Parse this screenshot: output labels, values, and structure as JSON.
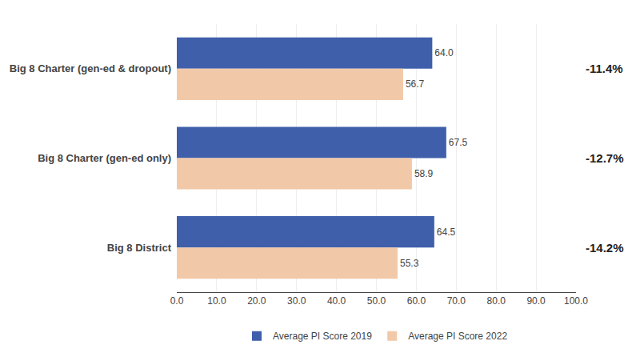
{
  "chart_data": {
    "type": "bar",
    "orientation": "horizontal",
    "categories": [
      "Big 8 Charter (gen-ed & dropout)",
      "Big 8 Charter (gen-ed only)",
      "Big 8 District"
    ],
    "series": [
      {
        "name": "Average PI Score 2019",
        "color": "#3F5FAB",
        "values": [
          64.0,
          67.5,
          64.5
        ],
        "value_labels": [
          "64.0",
          "67.5",
          "64.5"
        ]
      },
      {
        "name": "Average PI Score 2022",
        "color": "#F2C9A8",
        "values": [
          56.7,
          58.9,
          55.3
        ],
        "value_labels": [
          "56.7",
          "58.9",
          "55.3"
        ]
      }
    ],
    "data_labels": true,
    "annotations": [
      "-11.4%",
      "-12.7%",
      "-14.2%"
    ],
    "xlim": [
      0,
      100
    ],
    "xticks": [
      {
        "value": 0,
        "label": "0.0"
      },
      {
        "value": 10,
        "label": "10.0"
      },
      {
        "value": 20,
        "label": "20.0"
      },
      {
        "value": 30,
        "label": "30.0"
      },
      {
        "value": 40,
        "label": "40.0"
      },
      {
        "value": 50,
        "label": "50.0"
      },
      {
        "value": 60,
        "label": "60.0"
      },
      {
        "value": 70,
        "label": "70.0"
      },
      {
        "value": 80,
        "label": "80.0"
      },
      {
        "value": 90,
        "label": "90.0"
      },
      {
        "value": 100,
        "label": "100.0"
      }
    ],
    "grid": true,
    "legend": "bottom"
  }
}
